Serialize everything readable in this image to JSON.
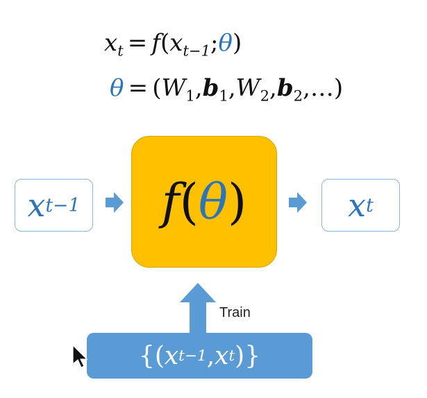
{
  "equations": {
    "eq1": {
      "lhs_var": "x",
      "lhs_sub": "t",
      "eq": "=",
      "func": "f",
      "open": "(",
      "arg_var": "x",
      "arg_sub": "t−1",
      "sep": ";",
      "param": "θ",
      "close": ")"
    },
    "eq2": {
      "lhs": "θ",
      "eq": "=",
      "open": "(",
      "w1": "W",
      "w1_sub": "1",
      "c1": ",",
      "b1": "b",
      "b1_sub": "1",
      "c2": ",",
      "w2": "W",
      "w2_sub": "2",
      "c3": ",",
      "b2": "b",
      "b2_sub": "2",
      "c4": ",",
      "ellipsis": "…",
      "close": ")"
    }
  },
  "input_box": {
    "var": "x",
    "sub": "t−1"
  },
  "function_box": {
    "func": "f",
    "open": "(",
    "param": "θ",
    "close": ")"
  },
  "output_box": {
    "var": "x",
    "sub": "t"
  },
  "train_label": "Train",
  "dataset": {
    "open_brace": "{",
    "open_paren": "(",
    "var1": "x",
    "sub1": "t−1",
    "comma": ",",
    "var2": "x",
    "sub2": "t",
    "close_paren": ")",
    "close_brace": "}"
  },
  "colors": {
    "accent_blue": "#2e75b6",
    "arrow_blue": "#5b9bd5",
    "function_fill": "#ffc000",
    "box_border": "#8fb4d9"
  },
  "icons": {
    "arrows": [
      "arrow-right-icon",
      "arrow-right-icon",
      "arrow-up-icon"
    ],
    "cursor": "mouse-cursor-icon"
  }
}
